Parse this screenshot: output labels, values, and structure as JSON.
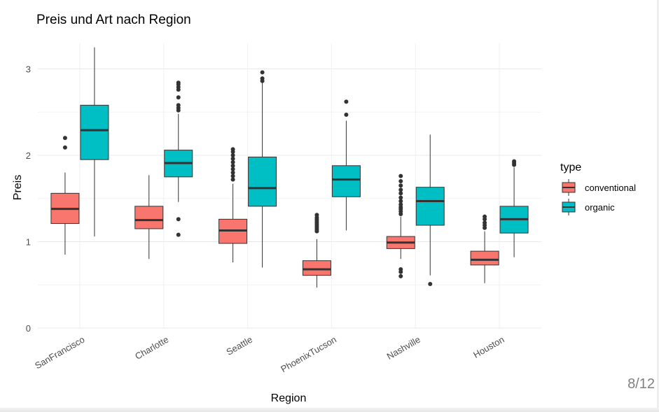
{
  "slide": {
    "page_counter": "8/12"
  },
  "chart_data": {
    "type": "boxplot",
    "title": "Preis und Art nach Region",
    "xlabel": "Region",
    "ylabel": "Preis",
    "ylim": [
      0,
      3.3
    ],
    "y_ticks": [
      0,
      1,
      2,
      3
    ],
    "grid": true,
    "legend_position": "right",
    "legend_title": "type",
    "categories": [
      "SanFrancisco",
      "Charlotte",
      "Seattle",
      "PhoenixTucson",
      "Nashville",
      "Houston"
    ],
    "series": [
      {
        "name": "conventional",
        "color": "#F8766D",
        "boxes": [
          {
            "min": 0.85,
            "q1": 1.21,
            "median": 1.38,
            "q3": 1.56,
            "max": 1.8,
            "outliers": [
              2.09,
              2.2
            ]
          },
          {
            "min": 0.8,
            "q1": 1.15,
            "median": 1.25,
            "q3": 1.41,
            "max": 1.77,
            "outliers": []
          },
          {
            "min": 0.76,
            "q1": 0.98,
            "median": 1.13,
            "q3": 1.26,
            "max": 1.67,
            "outliers": [
              1.72,
              1.76,
              1.8,
              1.84,
              1.88,
              1.92,
              1.96,
              2.0,
              2.04,
              2.07
            ]
          },
          {
            "min": 0.47,
            "q1": 0.61,
            "median": 0.68,
            "q3": 0.78,
            "max": 1.03,
            "outliers": [
              1.12,
              1.14,
              1.16,
              1.18,
              1.2,
              1.22,
              1.24,
              1.26,
              1.28,
              1.31
            ]
          },
          {
            "min": 0.8,
            "q1": 0.92,
            "median": 0.99,
            "q3": 1.06,
            "max": 1.29,
            "outliers": [
              0.6,
              0.65,
              0.68,
              1.32,
              1.35,
              1.38,
              1.4,
              1.43,
              1.47,
              1.51,
              1.56,
              1.6,
              1.65,
              1.7,
              1.76
            ]
          },
          {
            "min": 0.52,
            "q1": 0.73,
            "median": 0.79,
            "q3": 0.89,
            "max": 1.12,
            "outliers": [
              1.16,
              1.19,
              1.22,
              1.26,
              1.29
            ]
          }
        ]
      },
      {
        "name": "organic",
        "color": "#00BFC4",
        "boxes": [
          {
            "min": 1.06,
            "q1": 1.95,
            "median": 2.29,
            "q3": 2.58,
            "max": 3.25,
            "outliers": []
          },
          {
            "min": 1.46,
            "q1": 1.75,
            "median": 1.91,
            "q3": 2.06,
            "max": 2.48,
            "outliers": [
              1.08,
              1.26,
              2.52,
              2.55,
              2.58,
              2.67,
              2.76,
              2.79,
              2.82,
              2.84
            ]
          },
          {
            "min": 0.7,
            "q1": 1.41,
            "median": 1.62,
            "q3": 1.98,
            "max": 2.84,
            "outliers": [
              2.86,
              2.89,
              2.96
            ]
          },
          {
            "min": 1.13,
            "q1": 1.52,
            "median": 1.72,
            "q3": 1.88,
            "max": 2.4,
            "outliers": [
              2.47,
              2.62
            ]
          },
          {
            "min": 0.61,
            "q1": 1.19,
            "median": 1.47,
            "q3": 1.63,
            "max": 2.24,
            "outliers": [
              0.51
            ]
          },
          {
            "min": 0.82,
            "q1": 1.1,
            "median": 1.26,
            "q3": 1.41,
            "max": 1.86,
            "outliers": [
              1.89,
              1.91,
              1.93
            ]
          }
        ]
      }
    ]
  }
}
